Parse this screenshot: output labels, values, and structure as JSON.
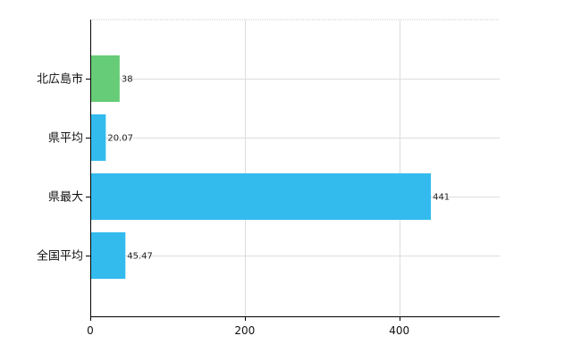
{
  "chart_data": {
    "type": "bar",
    "orientation": "horizontal",
    "categories": [
      "北広島市",
      "県平均",
      "県最大",
      "全国平均"
    ],
    "values": [
      38,
      20.07,
      441,
      45.47
    ],
    "value_labels": [
      "38",
      "20.07",
      "441",
      "45.47"
    ],
    "bar_colors": [
      "#66cc77",
      "#33bbee",
      "#33bbee",
      "#33bbee"
    ],
    "xlim": [
      0,
      530
    ],
    "xticks": [
      0,
      200,
      400
    ],
    "title": "",
    "xlabel": "",
    "ylabel": "",
    "grid": true,
    "legend": "none"
  }
}
